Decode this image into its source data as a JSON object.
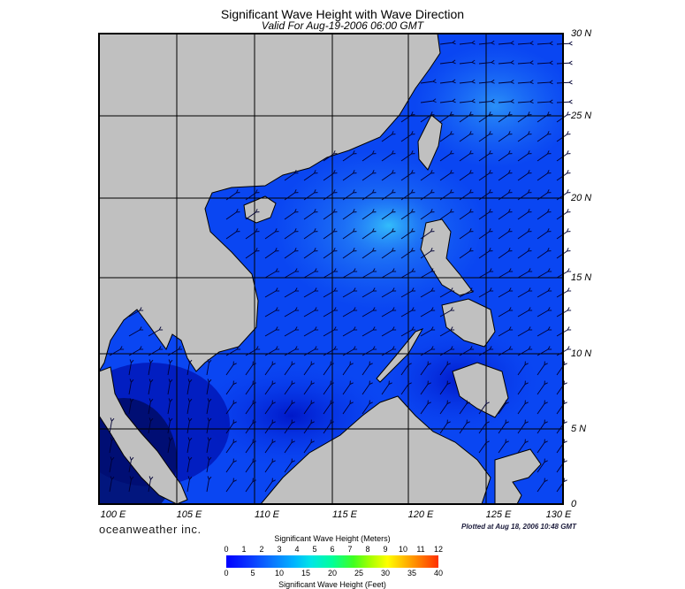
{
  "title": "Significant Wave Height with Wave Direction",
  "subtitle": "Valid For Aug-19-2006 06:00 GMT",
  "lat_labels": [
    "30 N",
    "25 N",
    "20 N",
    "15 N",
    "10 N",
    "5 N",
    "0"
  ],
  "lon_labels": [
    "100 E",
    "105 E",
    "110 E",
    "115 E",
    "120 E",
    "125 E",
    "130 E"
  ],
  "brand": "oceanweather inc.",
  "plotted": "Plotted at Aug 18, 2006 10:48 GMT",
  "colorbar": {
    "title_meters": "Significant Wave Height (Meters)",
    "title_feet": "Significant Wave Height (Feet)",
    "meters_ticks": [
      "0",
      "1",
      "2",
      "3",
      "4",
      "5",
      "6",
      "7",
      "8",
      "9",
      "10",
      "11",
      "12"
    ],
    "feet_ticks": [
      "0",
      "5",
      "10",
      "15",
      "20",
      "25",
      "30",
      "35",
      "40"
    ]
  },
  "colors": {
    "land": "#c0c0c0",
    "sea_deep": "#0a3cf0",
    "sea_light": "#2a8cf8",
    "arrow": "#000033"
  }
}
